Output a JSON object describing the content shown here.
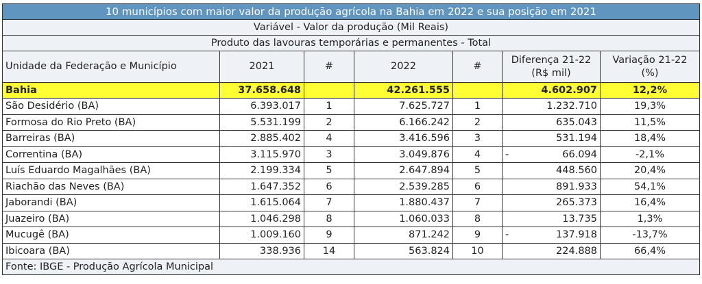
{
  "title": "10 municípios com maior valor da produção agrícola na Bahia em 2022 e sua posição em 2021",
  "variable": "Variável - Valor da produção (Mil Reais)",
  "product": "Produto das lavouras temporárias e permanentes - Total",
  "headers": {
    "unit": "Unidade da Federação e Município",
    "y2021": "2021",
    "rank2021": "#",
    "y2022": "2022",
    "rank2022": "#",
    "diff_line1": "Diferença 21-22",
    "diff_line2": "(R$ mil)",
    "var_line1": "Variação 21-22",
    "var_line2": "(%)"
  },
  "total": {
    "name": "Bahia",
    "v2021": "37.658.648",
    "v2022": "42.261.555",
    "diff": "4.602.907",
    "var": "12,2%"
  },
  "rows": [
    {
      "name": "São Desidério (BA)",
      "v2021": "6.393.017",
      "r2021": "1",
      "v2022": "7.625.727",
      "r2022": "1",
      "sign": "",
      "diff": "1.232.710",
      "var": "19,3%"
    },
    {
      "name": "Formosa do Rio Preto (BA)",
      "v2021": "5.531.199",
      "r2021": "2",
      "v2022": "6.166.242",
      "r2022": "2",
      "sign": "",
      "diff": "635.043",
      "var": "11,5%"
    },
    {
      "name": "Barreiras (BA)",
      "v2021": "2.885.402",
      "r2021": "4",
      "v2022": "3.416.596",
      "r2022": "3",
      "sign": "",
      "diff": "531.194",
      "var": "18,4%"
    },
    {
      "name": "Correntina (BA)",
      "v2021": "3.115.970",
      "r2021": "3",
      "v2022": "3.049.876",
      "r2022": "4",
      "sign": "-",
      "diff": "66.094",
      "var": "-2,1%"
    },
    {
      "name": "Luís Eduardo Magalhães (BA)",
      "v2021": "2.199.334",
      "r2021": "5",
      "v2022": "2.647.894",
      "r2022": "5",
      "sign": "",
      "diff": "448.560",
      "var": "20,4%"
    },
    {
      "name": "Riachão das Neves (BA)",
      "v2021": "1.647.352",
      "r2021": "6",
      "v2022": "2.539.285",
      "r2022": "6",
      "sign": "",
      "diff": "891.933",
      "var": "54,1%"
    },
    {
      "name": "Jaborandi (BA)",
      "v2021": "1.615.064",
      "r2021": "7",
      "v2022": "1.880.437",
      "r2022": "7",
      "sign": "",
      "diff": "265.373",
      "var": "16,4%"
    },
    {
      "name": "Juazeiro (BA)",
      "v2021": "1.046.298",
      "r2021": "8",
      "v2022": "1.060.033",
      "r2022": "8",
      "sign": "",
      "diff": "13.735",
      "var": "1,3%"
    },
    {
      "name": "Mucugê (BA)",
      "v2021": "1.009.160",
      "r2021": "9",
      "v2022": "871.242",
      "r2022": "9",
      "sign": "-",
      "diff": "137.918",
      "var": "-13,7%"
    },
    {
      "name": "Ibicoara (BA)",
      "v2021": "338.936",
      "r2021": "14",
      "v2022": "563.824",
      "r2022": "10",
      "sign": "",
      "diff": "224.888",
      "var": "66,4%"
    }
  ],
  "source": "Fonte: IBGE - Produção Agrícola Municipal"
}
